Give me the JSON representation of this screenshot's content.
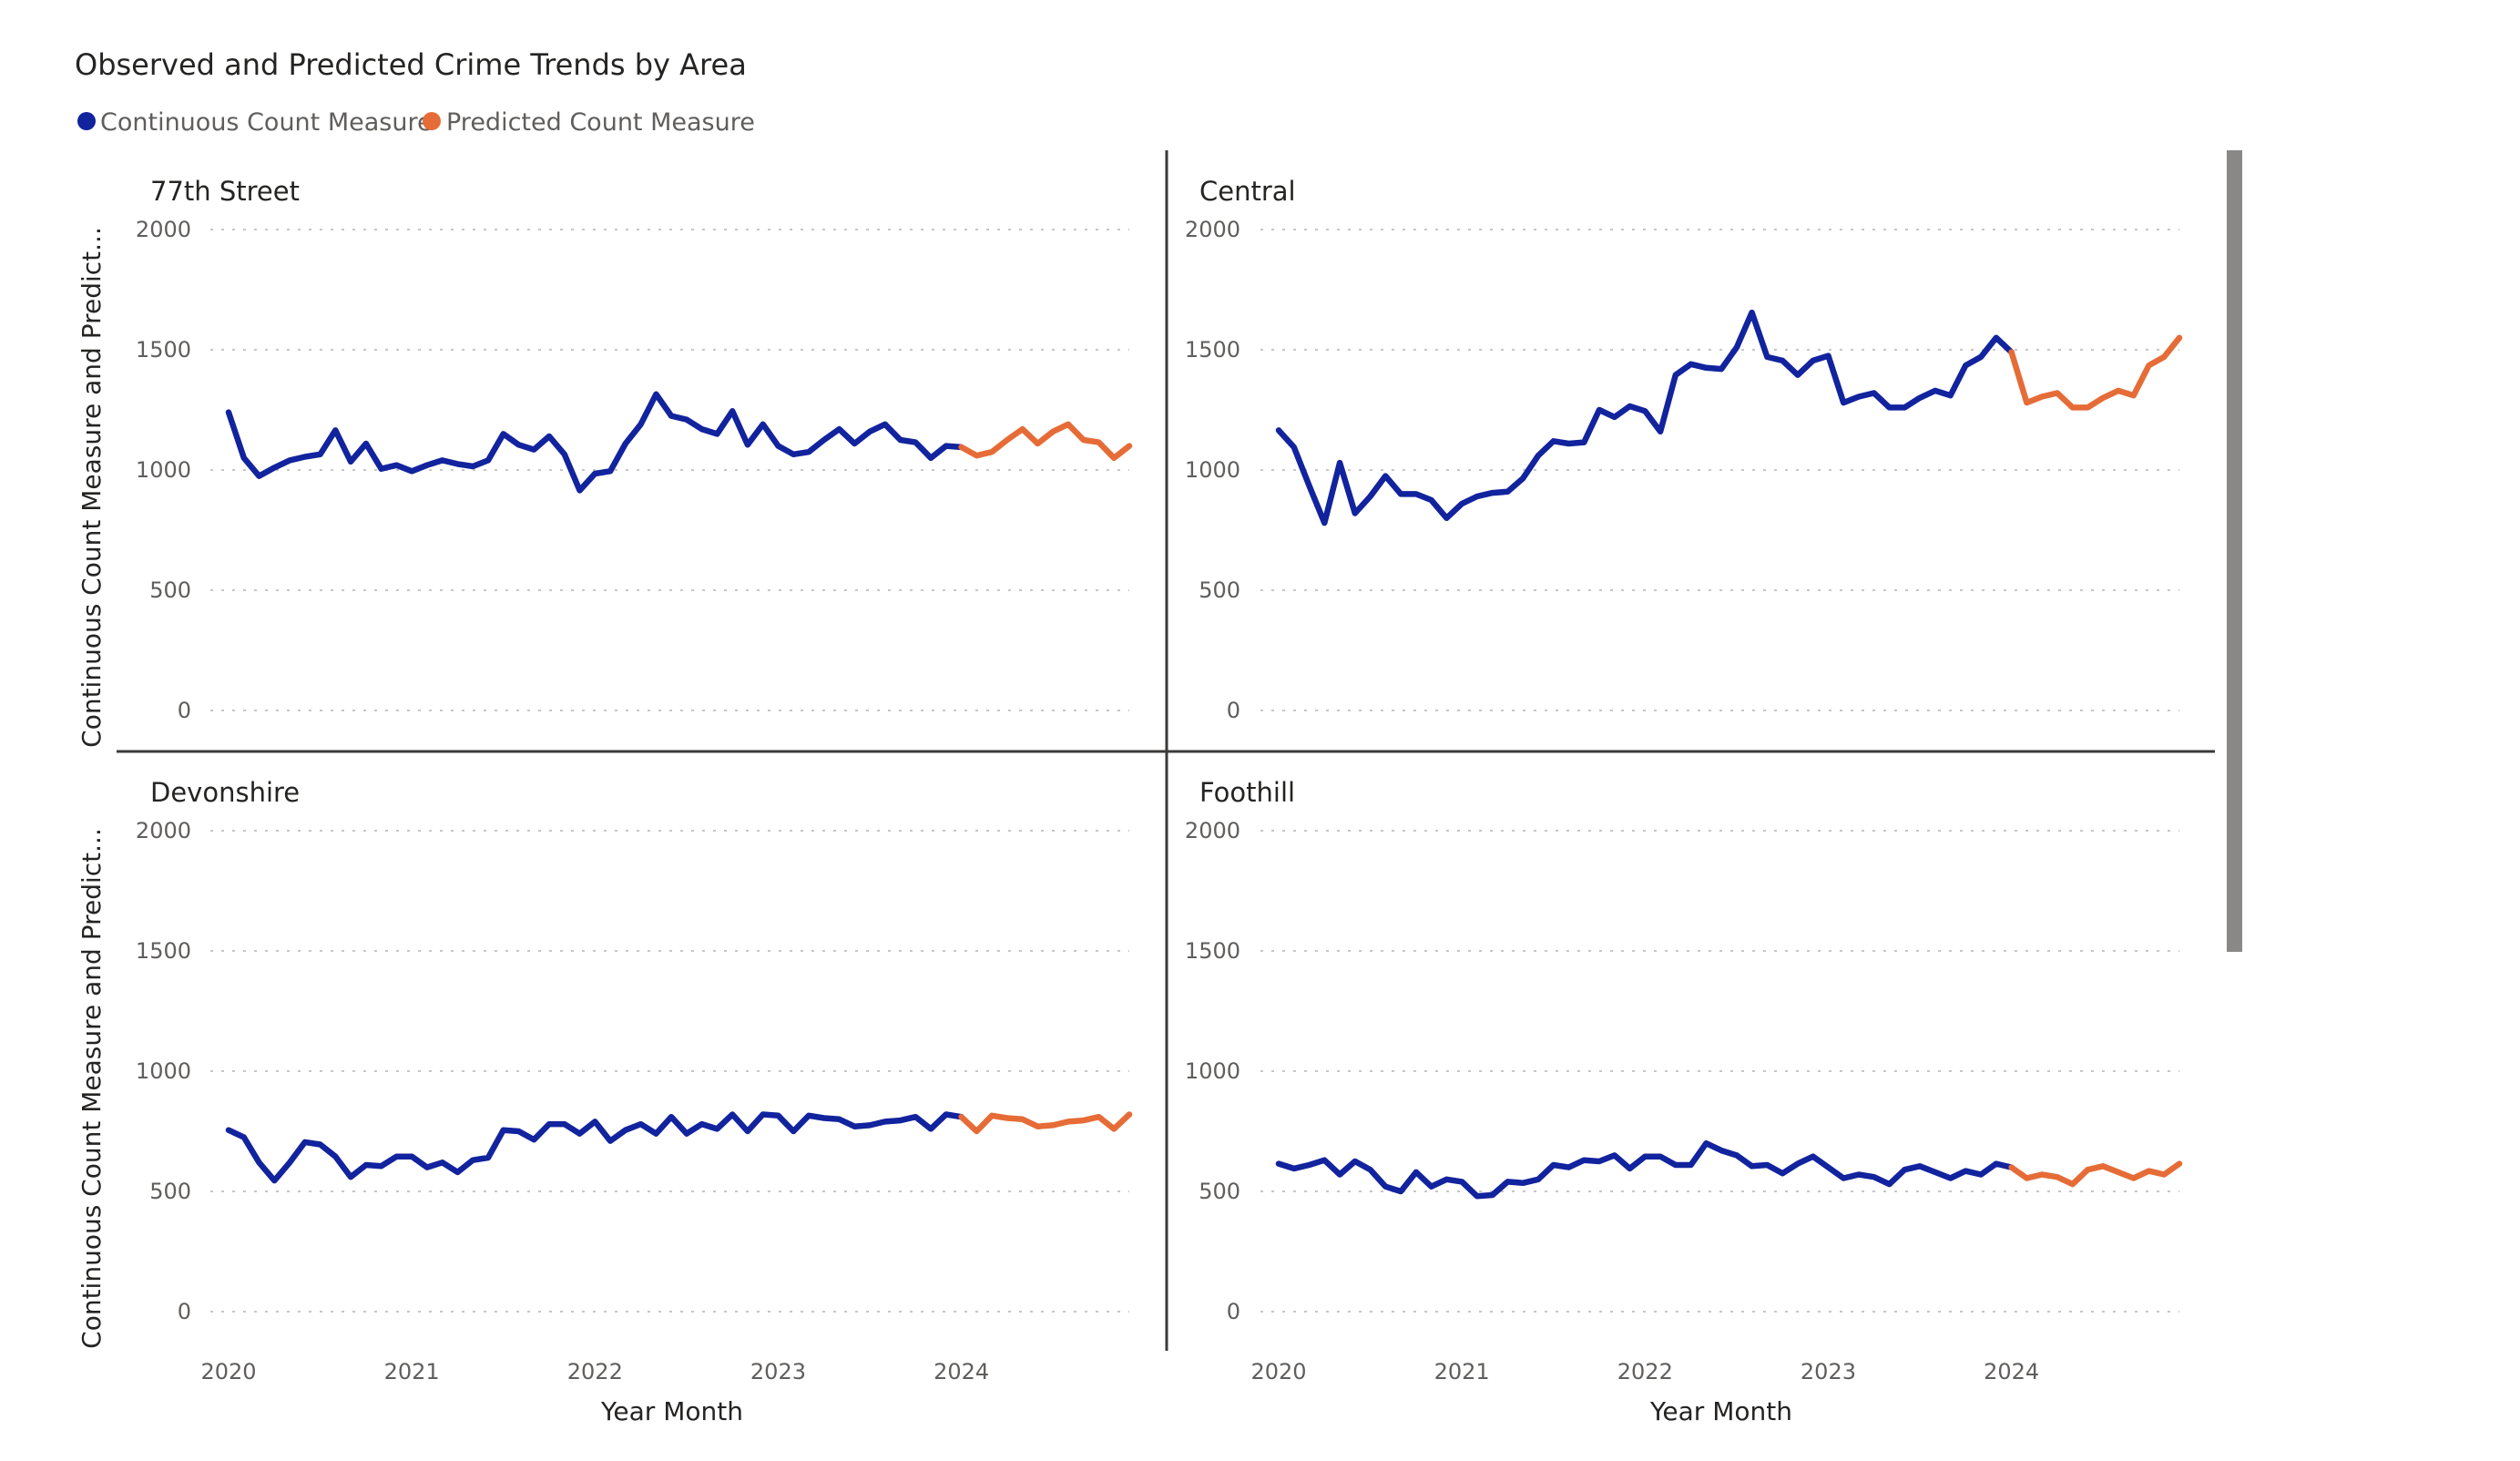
{
  "title": "Observed and Predicted Crime Trends by Area",
  "legend": [
    {
      "label": "Continuous Count Measure",
      "color": "#12239E"
    },
    {
      "label": "Predicted Count Measure",
      "color": "#E66C37"
    }
  ],
  "axes": {
    "xlabel": "Year Month",
    "ylabel": "Continuous Count Measure and Predict...",
    "y_ticks": [
      "0",
      "500",
      "1000",
      "1500",
      "2000"
    ],
    "x_ticks": [
      "2020",
      "2021",
      "2022",
      "2023",
      "2024"
    ]
  },
  "chart_data": {
    "type": "line",
    "x_start": "2020-01",
    "x_end": "2024-12",
    "x_tick_values": [
      "2020-01",
      "2021-01",
      "2022-01",
      "2023-01",
      "2024-01"
    ],
    "ylim": [
      0,
      2000
    ],
    "grid": true,
    "legend_position": "top-left",
    "panels": [
      {
        "area": "77th Street",
        "observed": [
          1240,
          1050,
          975,
          1010,
          1040,
          1055,
          1065,
          1165,
          1035,
          1110,
          1005,
          1020,
          995,
          1020,
          1040,
          1025,
          1015,
          1040,
          1150,
          1105,
          1085,
          1140,
          1065,
          915,
          985,
          995,
          1110,
          1190,
          1315,
          1225,
          1210,
          1170,
          1150,
          1245,
          1105,
          1190,
          1100,
          1065,
          1075,
          1125,
          1170,
          1110,
          1160,
          1190,
          1125,
          1115,
          1050,
          1100,
          1095
        ],
        "predicted": [
          1095,
          1060,
          1075,
          1125,
          1170,
          1110,
          1160,
          1190,
          1125,
          1115,
          1050,
          1100
        ]
      },
      {
        "area": "Central",
        "observed": [
          1165,
          1095,
          935,
          780,
          1030,
          820,
          890,
          975,
          900,
          900,
          875,
          800,
          860,
          890,
          905,
          910,
          965,
          1060,
          1120,
          1110,
          1115,
          1250,
          1220,
          1265,
          1245,
          1160,
          1395,
          1440,
          1425,
          1420,
          1510,
          1655,
          1470,
          1455,
          1395,
          1455,
          1475,
          1280,
          1305,
          1320,
          1260,
          1260,
          1300,
          1330,
          1310,
          1435,
          1470,
          1550,
          1490
        ],
        "predicted": [
          1490,
          1280,
          1305,
          1320,
          1260,
          1260,
          1300,
          1330,
          1310,
          1435,
          1470,
          1550
        ]
      },
      {
        "area": "Devonshire",
        "observed": [
          755,
          725,
          620,
          545,
          620,
          705,
          695,
          645,
          560,
          610,
          605,
          645,
          645,
          600,
          620,
          580,
          630,
          640,
          755,
          750,
          715,
          780,
          780,
          740,
          790,
          710,
          755,
          780,
          740,
          810,
          740,
          780,
          760,
          820,
          750,
          820,
          815,
          750,
          815,
          805,
          800,
          770,
          775,
          790,
          795,
          810,
          760,
          820,
          810
        ],
        "predicted": [
          810,
          750,
          815,
          805,
          800,
          770,
          775,
          790,
          795,
          810,
          760,
          820
        ]
      },
      {
        "area": "Foothill",
        "observed": [
          615,
          595,
          610,
          630,
          570,
          625,
          590,
          520,
          500,
          580,
          520,
          550,
          540,
          480,
          485,
          540,
          535,
          550,
          610,
          600,
          630,
          625,
          650,
          595,
          645,
          645,
          610,
          610,
          700,
          670,
          650,
          605,
          610,
          575,
          615,
          645,
          600,
          555,
          570,
          560,
          530,
          590,
          605,
          580,
          555,
          585,
          570,
          615,
          600
        ],
        "predicted": [
          600,
          555,
          570,
          560,
          530,
          590,
          605,
          580,
          555,
          585,
          570,
          615
        ]
      }
    ]
  }
}
